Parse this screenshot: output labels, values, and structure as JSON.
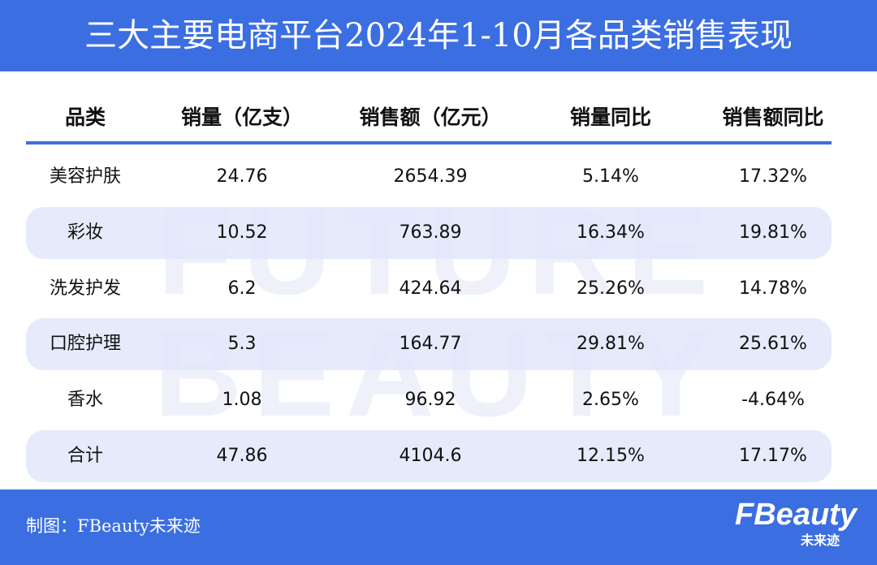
{
  "header": {
    "title": "三大主要电商平台2024年1-10月各品类销售表现"
  },
  "watermark": [
    "FUTURE",
    "BEAUTY"
  ],
  "table": {
    "columns": [
      "品类",
      "销量（亿支）",
      "销售额（亿元）",
      "销量同比",
      "销售额同比"
    ],
    "rows": [
      [
        "美容护肤",
        "24.76",
        "2654.39",
        "5.14%",
        "17.32%"
      ],
      [
        "彩妆",
        "10.52",
        "763.89",
        "16.34%",
        "19.81%"
      ],
      [
        "洗发护发",
        "6.2",
        "424.64",
        "25.26%",
        "14.78%"
      ],
      [
        "口腔护理",
        "5.3",
        "164.77",
        "29.81%",
        "25.61%"
      ],
      [
        "香水",
        "1.08",
        "96.92",
        "2.65%",
        "-4.64%"
      ],
      [
        "合计",
        "47.86",
        "4104.6",
        "12.15%",
        "17.17%"
      ]
    ]
  },
  "footer": {
    "credit": "制图：FBeauty未来迹",
    "logo": "FBeauty",
    "logo_sub": "未来迹"
  }
}
